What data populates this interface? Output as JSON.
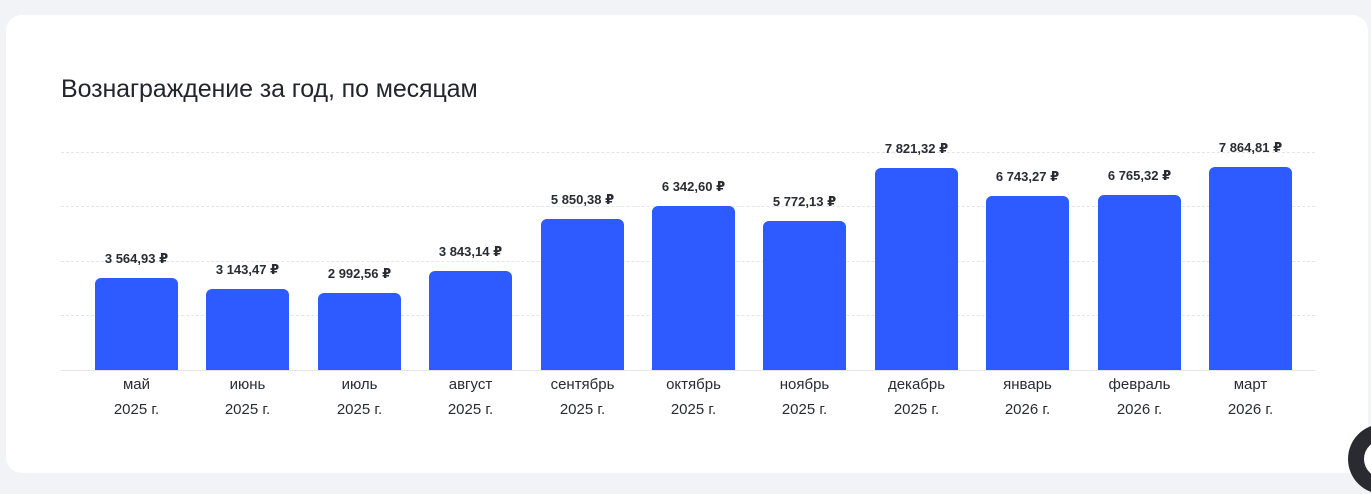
{
  "card": {
    "title": "Вознаграждение за год, по месяцам"
  },
  "colors": {
    "bar": "#2d5bff",
    "background": "#f2f3f7",
    "card": "#ffffff",
    "text": "#23252d"
  },
  "chart_data": {
    "type": "bar",
    "title": "Вознаграждение за год, по месяцам",
    "xlabel": "",
    "ylabel": "",
    "grid": true,
    "categories": [
      "май 2025 г.",
      "июнь 2025 г.",
      "июль 2025 г.",
      "август 2025 г.",
      "сентябрь 2025 г.",
      "октябрь 2025 г.",
      "ноябрь 2025 г.",
      "декабрь 2025 г.",
      "январь 2026 г.",
      "февраль 2026 г.",
      "март 2026 г."
    ],
    "values": [
      3564.93,
      3143.47,
      2992.56,
      3843.14,
      5850.38,
      6342.6,
      5772.13,
      7821.32,
      6743.27,
      6765.32,
      7864.81
    ],
    "value_labels": [
      "3 564,93 ₽",
      "3 143,47 ₽",
      "2 992,56 ₽",
      "3 843,14 ₽",
      "5 850,38 ₽",
      "6 342,60 ₽",
      "5 772,13 ₽",
      "7 821,32 ₽",
      "6 743,27 ₽",
      "6 765,32 ₽",
      "7 864,81 ₽"
    ],
    "unit": "₽"
  },
  "bars": [
    {
      "month": "май",
      "year": "2025 г.",
      "label": "3 564,93 ₽",
      "value": 3564.93
    },
    {
      "month": "июнь",
      "year": "2025 г.",
      "label": "3 143,47 ₽",
      "value": 3143.47
    },
    {
      "month": "июль",
      "year": "2025 г.",
      "label": "2 992,56 ₽",
      "value": 2992.56
    },
    {
      "month": "август",
      "year": "2025 г.",
      "label": "3 843,14 ₽",
      "value": 3843.14
    },
    {
      "month": "сентябрь",
      "year": "2025 г.",
      "label": "5 850,38 ₽",
      "value": 5850.38
    },
    {
      "month": "октябрь",
      "year": "2025 г.",
      "label": "6 342,60 ₽",
      "value": 6342.6
    },
    {
      "month": "ноябрь",
      "year": "2025 г.",
      "label": "5 772,13 ₽",
      "value": 5772.13
    },
    {
      "month": "декабрь",
      "year": "2025 г.",
      "label": "7 821,32 ₽",
      "value": 7821.32
    },
    {
      "month": "январь",
      "year": "2026 г.",
      "label": "6 743,27 ₽",
      "value": 6743.27
    },
    {
      "month": "февраль",
      "year": "2026 г.",
      "label": "6 765,32 ₽",
      "value": 6765.32
    },
    {
      "month": "март",
      "year": "2026 г.",
      "label": "7 864,81 ₽",
      "value": 7864.81
    }
  ]
}
